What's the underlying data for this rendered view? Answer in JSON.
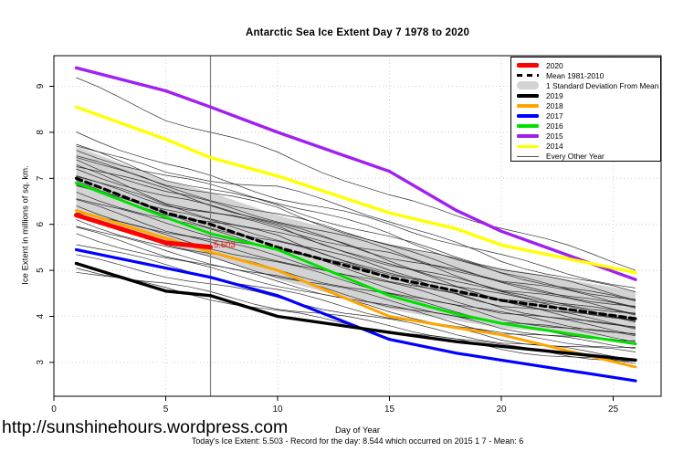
{
  "title": "Antarctic Sea Ice Extent Day 7 1978 to 2020",
  "footer": {
    "url": "http://sunshinehours.wordpress.com",
    "xlabel": "Day of Year",
    "stats": "Today's Ice Extent: 5.503  - Record for the day: 8.544 which occurred on 2015 1 7  - Mean: 6"
  },
  "legend": {
    "items": [
      {
        "label": "2020",
        "color": "#FF0000",
        "swatch": "thick"
      },
      {
        "label": "Mean 1981-2010",
        "color": "#000000",
        "swatch": "dashed"
      },
      {
        "label": "1 Standard Deviation From Mean",
        "color": "#D3D3D3",
        "swatch": "band"
      },
      {
        "label": "2019",
        "color": "#000000",
        "swatch": "line"
      },
      {
        "label": "2018",
        "color": "#FFA500",
        "swatch": "line"
      },
      {
        "label": "2017",
        "color": "#0000FF",
        "swatch": "line"
      },
      {
        "label": "2016",
        "color": "#00E000",
        "swatch": "line"
      },
      {
        "label": "2015",
        "color": "#A020F0",
        "swatch": "line"
      },
      {
        "label": "2014",
        "color": "#FFFF00",
        "swatch": "line"
      },
      {
        "label": "Every Other Year",
        "color": "#555555",
        "swatch": "thin"
      }
    ]
  },
  "chart_data": {
    "type": "line",
    "title": "Antarctic Sea Ice Extent Day 7 1978 to 2020",
    "xlabel": "Day of Year",
    "ylabel": "Ice Extent in millions of sq. km.",
    "xlim": [
      0,
      27.1
    ],
    "ylim": [
      2.26,
      9.66
    ],
    "x_ticks": [
      0,
      5,
      10,
      15,
      20,
      25
    ],
    "y_ticks": [
      3,
      4,
      5,
      6,
      7,
      8,
      9
    ],
    "grid": "dotted",
    "legend_position": "top-right",
    "vline_x": 7,
    "annotation": {
      "text": "5.503",
      "x": 7.3,
      "y": 5.5,
      "color": "#FF0000"
    },
    "band": {
      "name": "1 Standard Deviation From Mean",
      "color": "#D3D3D3",
      "x": [
        1,
        5,
        7,
        10,
        15,
        18,
        20,
        26
      ],
      "top": [
        7.7,
        6.95,
        6.7,
        6.2,
        5.55,
        5.25,
        5.05,
        4.55
      ],
      "bottom": [
        6.3,
        5.55,
        5.3,
        4.8,
        4.15,
        3.9,
        3.75,
        3.5
      ]
    },
    "series": [
      {
        "name": "Mean 1981-2010",
        "color": "#000000",
        "width": 3.2,
        "dash": "6.5 4.5",
        "x": [
          1,
          5,
          7,
          10,
          15,
          18,
          20,
          26
        ],
        "values": [
          7.0,
          6.25,
          6.0,
          5.5,
          4.85,
          4.55,
          4.35,
          3.95
        ]
      },
      {
        "name": "2016",
        "color": "#00E000",
        "width": 3,
        "x": [
          1,
          5,
          7,
          10,
          15,
          18,
          20,
          26
        ],
        "values": [
          6.9,
          6.15,
          5.8,
          5.45,
          4.45,
          4.05,
          3.85,
          3.4
        ]
      },
      {
        "name": "2018",
        "color": "#FFA500",
        "width": 3,
        "x": [
          1,
          5,
          7,
          10,
          15,
          18,
          20,
          26
        ],
        "values": [
          6.3,
          5.7,
          5.4,
          5.0,
          4.0,
          3.75,
          3.6,
          2.9
        ]
      },
      {
        "name": "2017",
        "color": "#0000FF",
        "width": 3.2,
        "x": [
          1,
          5,
          7,
          10,
          15,
          18,
          20,
          26
        ],
        "values": [
          5.45,
          5.05,
          4.85,
          4.45,
          3.5,
          3.2,
          3.05,
          2.6
        ]
      },
      {
        "name": "2019",
        "color": "#000000",
        "width": 3.4,
        "x": [
          1,
          5,
          7,
          10,
          15,
          18,
          20,
          26
        ],
        "values": [
          5.15,
          4.55,
          4.45,
          4.0,
          3.65,
          3.45,
          3.35,
          3.05
        ]
      },
      {
        "name": "2015",
        "color": "#A020F0",
        "width": 3.4,
        "x": [
          1,
          5,
          7,
          10,
          15,
          18,
          20,
          26
        ],
        "values": [
          9.4,
          8.9,
          8.55,
          8.0,
          7.15,
          6.3,
          5.85,
          4.8
        ]
      },
      {
        "name": "2014",
        "color": "#FFFF00",
        "width": 3.4,
        "x": [
          1,
          5,
          7,
          10,
          15,
          18,
          20,
          26
        ],
        "values": [
          8.55,
          7.85,
          7.45,
          7.05,
          6.25,
          5.9,
          5.55,
          4.95
        ]
      },
      {
        "name": "2020",
        "color": "#FF0000",
        "width": 5,
        "x": [
          1,
          3,
          5,
          7
        ],
        "values": [
          6.2,
          5.9,
          5.6,
          5.503
        ]
      }
    ],
    "other_years": {
      "name": "Every Other Year",
      "color": "#1a1a1a",
      "width": 0.7,
      "x": [
        1,
        5,
        10,
        15,
        20,
        26
      ],
      "lines": [
        [
          9.15,
          8.3,
          7.55,
          6.6,
          5.95,
          5.05
        ],
        [
          8.0,
          7.3,
          6.6,
          6.0,
          5.3,
          4.6
        ],
        [
          7.75,
          7.1,
          6.8,
          6.1,
          5.2,
          4.5
        ],
        [
          7.7,
          7.0,
          6.4,
          5.7,
          5.05,
          4.4
        ],
        [
          7.6,
          7.05,
          6.5,
          5.8,
          4.9,
          4.35
        ],
        [
          7.5,
          6.8,
          6.2,
          5.6,
          4.95,
          4.3
        ],
        [
          7.45,
          6.9,
          6.35,
          5.5,
          4.8,
          4.25
        ],
        [
          7.4,
          6.7,
          6.1,
          5.45,
          4.7,
          4.2
        ],
        [
          7.3,
          6.75,
          6.0,
          5.3,
          4.75,
          4.15
        ],
        [
          7.25,
          6.5,
          5.9,
          5.35,
          4.6,
          4.1
        ],
        [
          7.2,
          6.6,
          6.05,
          5.2,
          4.5,
          4.05
        ],
        [
          7.1,
          6.4,
          5.8,
          5.15,
          4.55,
          4.0
        ],
        [
          7.0,
          6.45,
          5.95,
          5.1,
          4.4,
          3.95
        ],
        [
          6.95,
          6.3,
          5.7,
          5.0,
          4.45,
          3.9
        ],
        [
          6.9,
          6.2,
          5.6,
          4.95,
          4.35,
          3.85
        ],
        [
          6.8,
          6.25,
          5.75,
          4.9,
          4.25,
          3.8
        ],
        [
          6.7,
          6.1,
          5.5,
          4.85,
          4.3,
          3.75
        ],
        [
          6.6,
          6.0,
          5.45,
          4.8,
          4.2,
          3.7
        ],
        [
          6.5,
          5.9,
          5.3,
          4.7,
          4.1,
          3.65
        ],
        [
          6.4,
          5.8,
          5.25,
          4.6,
          4.05,
          3.6
        ],
        [
          6.3,
          5.75,
          5.15,
          4.55,
          3.95,
          3.55
        ],
        [
          6.2,
          5.6,
          5.0,
          4.45,
          3.9,
          3.5
        ],
        [
          6.1,
          5.5,
          4.9,
          4.35,
          3.8,
          3.45
        ],
        [
          6.0,
          5.4,
          4.85,
          4.25,
          3.75,
          3.4
        ],
        [
          5.9,
          5.35,
          4.75,
          4.2,
          3.65,
          3.35
        ],
        [
          5.8,
          5.25,
          4.7,
          4.1,
          3.6,
          3.3
        ],
        [
          5.6,
          5.1,
          4.55,
          4.0,
          3.5,
          3.2
        ],
        [
          5.3,
          4.9,
          4.4,
          3.9,
          3.45,
          3.1
        ],
        [
          5.05,
          4.7,
          4.2,
          3.8,
          3.35,
          3.0
        ],
        [
          5.0,
          4.6,
          4.1,
          3.7,
          3.3,
          2.95
        ]
      ]
    }
  }
}
